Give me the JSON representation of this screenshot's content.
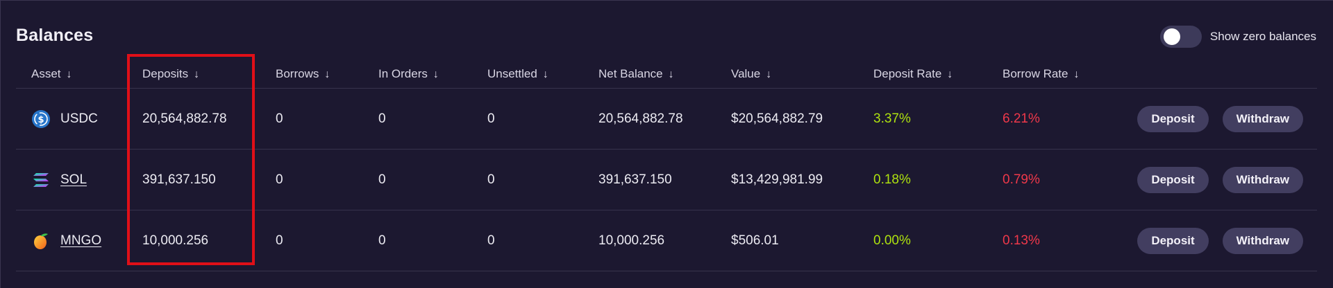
{
  "panel": {
    "title": "Balances",
    "toggle_label": "Show zero balances"
  },
  "columns": [
    {
      "label": "Asset"
    },
    {
      "label": "Deposits"
    },
    {
      "label": "Borrows"
    },
    {
      "label": "In Orders"
    },
    {
      "label": "Unsettled"
    },
    {
      "label": "Net Balance"
    },
    {
      "label": "Value"
    },
    {
      "label": "Deposit Rate"
    },
    {
      "label": "Borrow Rate"
    }
  ],
  "rows": [
    {
      "asset": "USDC",
      "icon": "usdc-icon",
      "deposits": "20,564,882.78",
      "borrows": "0",
      "in_orders": "0",
      "unsettled": "0",
      "net_balance": "20,564,882.78",
      "value": "$20,564,882.79",
      "deposit_rate": "3.37%",
      "borrow_rate": "6.21%",
      "deposit_label": "Deposit",
      "withdraw_label": "Withdraw"
    },
    {
      "asset": "SOL",
      "icon": "sol-icon",
      "deposits": "391,637.150",
      "borrows": "0",
      "in_orders": "0",
      "unsettled": "0",
      "net_balance": "391,637.150",
      "value": "$13,429,981.99",
      "deposit_rate": "0.18%",
      "borrow_rate": "0.79%",
      "deposit_label": "Deposit",
      "withdraw_label": "Withdraw"
    },
    {
      "asset": "MNGO",
      "icon": "mango-icon",
      "deposits": "10,000.256",
      "borrows": "0",
      "in_orders": "0",
      "unsettled": "0",
      "net_balance": "10,000.256",
      "value": "$506.01",
      "deposit_rate": "0.00%",
      "borrow_rate": "0.13%",
      "deposit_label": "Deposit",
      "withdraw_label": "Withdraw"
    }
  ],
  "colors": {
    "background": "#1c1830",
    "positive_rate": "#aee20f",
    "negative_rate": "#f0384a",
    "button_bg": "#423e60",
    "highlight_box": "#e00f18"
  }
}
